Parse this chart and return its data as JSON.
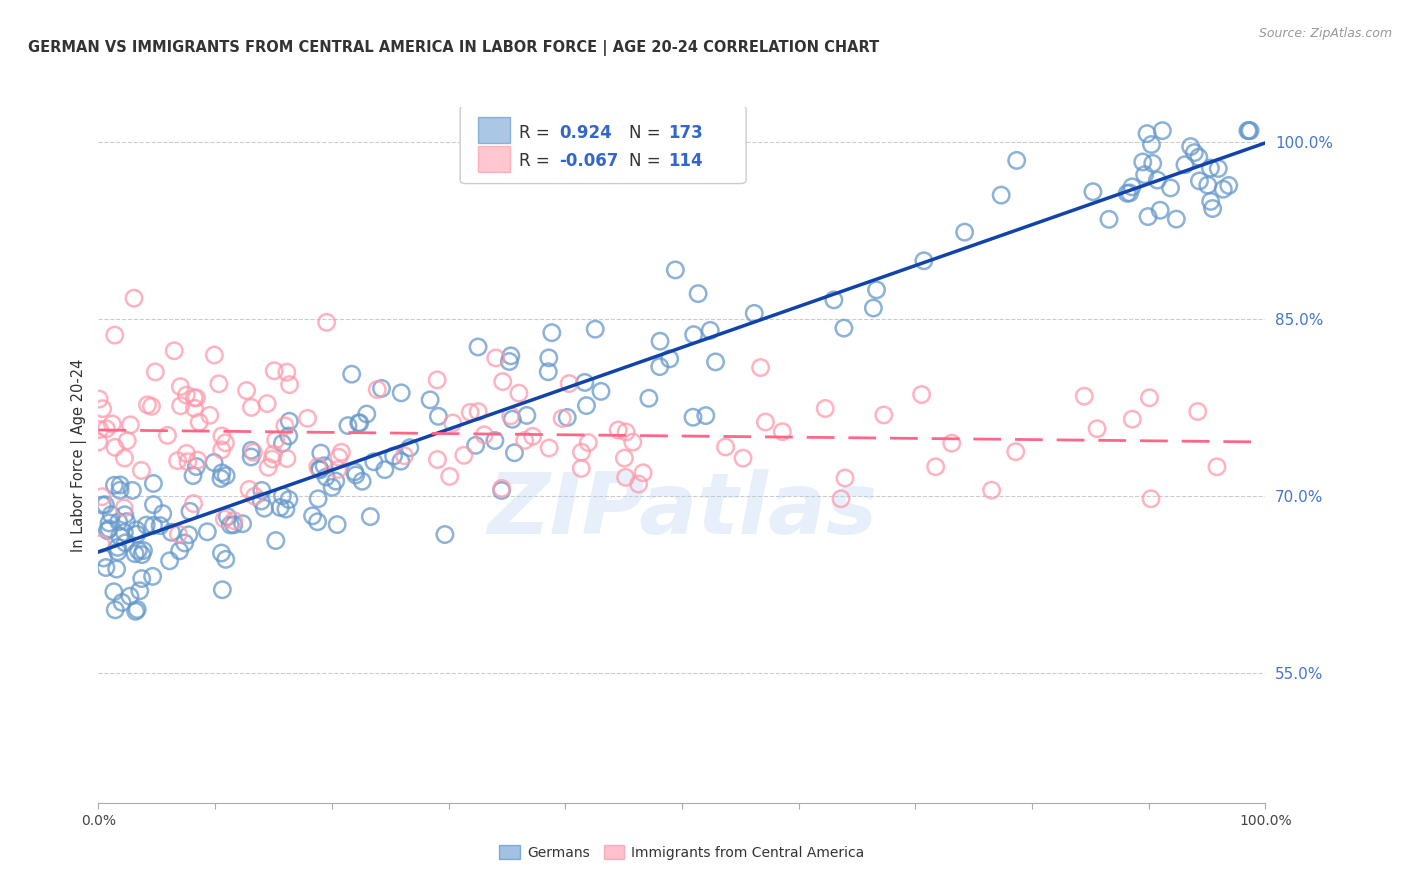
{
  "title": "GERMAN VS IMMIGRANTS FROM CENTRAL AMERICA IN LABOR FORCE | AGE 20-24 CORRELATION CHART",
  "source": "Source: ZipAtlas.com",
  "ylabel": "In Labor Force | Age 20-24",
  "xlim": [
    0.0,
    1.0
  ],
  "ylim": [
    0.44,
    1.03
  ],
  "yticks": [
    0.55,
    0.7,
    0.85,
    1.0
  ],
  "ytick_labels": [
    "55.0%",
    "70.0%",
    "85.0%",
    "100.0%"
  ],
  "blue_R": 0.924,
  "blue_N": 173,
  "pink_R": -0.067,
  "pink_N": 114,
  "blue_color": "#6699cc",
  "pink_color": "#ff99aa",
  "line_blue": "#1144aa",
  "line_pink": "#ff6688",
  "legend_blue_label": "Germans",
  "legend_pink_label": "Immigrants from Central America",
  "background_color": "#ffffff",
  "watermark": "ZIPatlas"
}
